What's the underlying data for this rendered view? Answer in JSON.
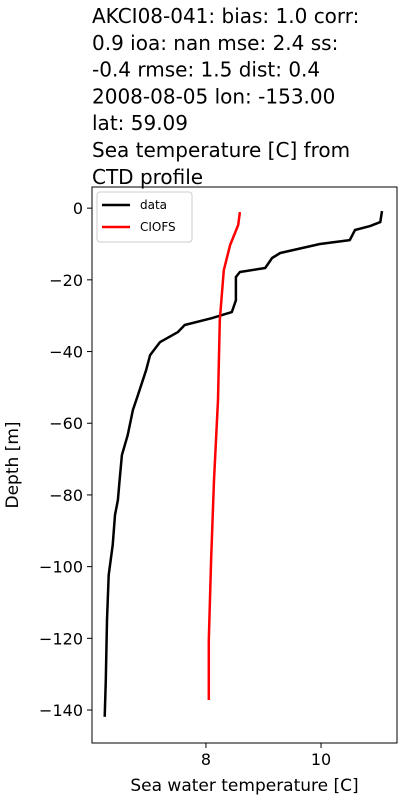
{
  "chart_data": {
    "type": "line",
    "title": [
      "AKCI08-041: bias: 1.0  corr:",
      "0.9  ioa: nan  mse: 2.4  ss:",
      "-0.4  rmse: 1.5  dist: 0.4",
      "2008-08-05 lon: -153.00",
      "lat: 59.09",
      "Sea temperature [C] from",
      "CTD profile"
    ],
    "x_label": "Sea water temperature [C]",
    "y_label": "Depth [m]",
    "xlim": [
      6.02,
      11.32
    ],
    "ylim": [
      -149.2,
      5.9
    ],
    "xticks": [
      8,
      10
    ],
    "yticks": [
      0,
      {
        "value": -20,
        "label": "−20"
      },
      {
        "value": -40,
        "label": "−40"
      },
      {
        "value": -60,
        "label": "−60"
      },
      {
        "value": -80,
        "label": "−80"
      },
      {
        "value": -100,
        "label": "−100"
      },
      {
        "value": -120,
        "label": "−120"
      },
      {
        "value": -140,
        "label": "−140"
      }
    ],
    "legend": "upper left",
    "series": [
      {
        "name": "data",
        "color": "#000000",
        "x": [
          11.06,
          11.03,
          10.85,
          10.59,
          10.5,
          9.98,
          9.29,
          9.15,
          9.03,
          8.59,
          8.52,
          8.52,
          8.45,
          8.1,
          7.63,
          7.51,
          7.2,
          7.03,
          6.96,
          6.82,
          6.73,
          6.64,
          6.54,
          6.5,
          6.47,
          6.42,
          6.38,
          6.31,
          6.28,
          6.26,
          6.24
        ],
        "y": [
          -0.8,
          -3.9,
          -5.0,
          -6.1,
          -8.9,
          -10.0,
          -12.5,
          -13.9,
          -16.7,
          -17.8,
          -19.2,
          -25.7,
          -29.0,
          -30.7,
          -32.6,
          -34.6,
          -37.4,
          -41.0,
          -45.2,
          -52.1,
          -56.3,
          -63.3,
          -68.9,
          -75.9,
          -81.4,
          -85.6,
          -94.0,
          -102.3,
          -114.9,
          -131.6,
          -141.9
        ]
      },
      {
        "name": "CIOFS",
        "color": "#ff0000",
        "x": [
          8.59,
          8.56,
          8.42,
          8.31,
          8.24,
          8.21,
          8.14,
          8.09,
          8.05,
          8.05
        ],
        "y": [
          -1.1,
          -4.7,
          -10.3,
          -17.3,
          -31.2,
          -53.5,
          -75.9,
          -98.2,
          -120.5,
          -137.2
        ]
      }
    ]
  }
}
